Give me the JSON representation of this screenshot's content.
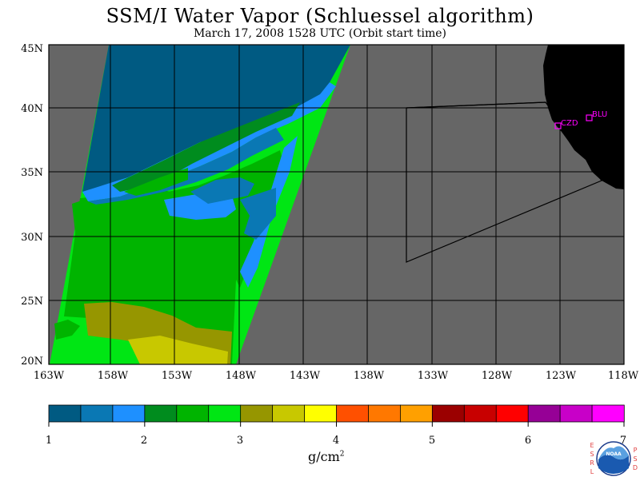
{
  "title": "SSM/I Water Vapor (Schluessel algorithm)",
  "subtitle": "March 17, 2008   1528 UTC  (Orbit start time)",
  "map": {
    "lat_labels": [
      "45N",
      "40N",
      "35N",
      "30N",
      "25N",
      "20N"
    ],
    "lon_labels": [
      "163W",
      "158W",
      "153W",
      "148W",
      "143W",
      "138W",
      "133W",
      "128W",
      "123W",
      "118W"
    ],
    "stations": [
      {
        "id": "CZD",
        "name": "CZD"
      },
      {
        "id": "BLU",
        "name": "BLU"
      }
    ],
    "colors": {
      "no_data": "#666666",
      "land": "#000000",
      "station": "#ff00ff"
    }
  },
  "colorbar": {
    "unit": "g/cm",
    "unit_power": "2",
    "tick_labels": [
      "1",
      "2",
      "3",
      "4",
      "5",
      "6",
      "7"
    ],
    "colors": [
      "#005a82",
      "#0a78b4",
      "#1e90ff",
      "#008c1e",
      "#00b400",
      "#00e614",
      "#969600",
      "#c8c800",
      "#ffff00",
      "#ff5000",
      "#ff7800",
      "#ffa000",
      "#9b0000",
      "#c80000",
      "#ff0000",
      "#960096",
      "#c800c8",
      "#ff00ff"
    ]
  },
  "logo": {
    "left_letters": [
      "E",
      "S",
      "R",
      "L"
    ],
    "right_letters": [
      "P",
      "S",
      "D"
    ],
    "emblem_text": "NOAA"
  }
}
